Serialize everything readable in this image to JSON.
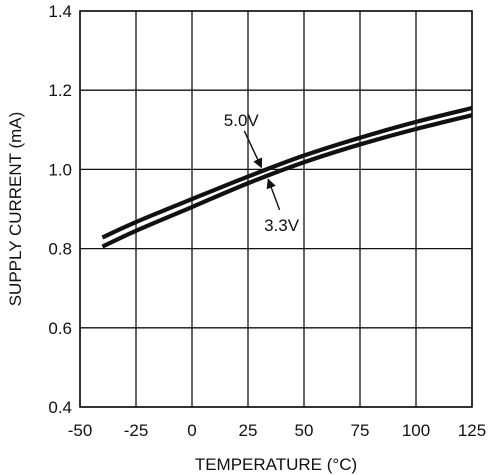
{
  "chart_data": {
    "type": "line",
    "xlabel": "TEMPERATURE (°C)",
    "ylabel": "SUPPLY CURRENT (mA)",
    "xlim": [
      -50,
      125
    ],
    "ylim": [
      0.4,
      1.4
    ],
    "x_ticks": [
      -50,
      -25,
      0,
      25,
      50,
      75,
      100,
      125
    ],
    "x_tick_labels": [
      "-50",
      "-25",
      "0",
      "25",
      "50",
      "75",
      "100",
      "125"
    ],
    "y_ticks": [
      0.4,
      0.6,
      0.8,
      1.0,
      1.2,
      1.4
    ],
    "y_tick_labels": [
      "0.4",
      "0.6",
      "0.8",
      "1.0",
      "1.2",
      "1.4"
    ],
    "grid": true,
    "series": [
      {
        "name": "5.0V",
        "x": [
          -40,
          -25,
          0,
          25,
          50,
          75,
          100,
          125
        ],
        "y": [
          0.828,
          0.867,
          0.925,
          0.982,
          1.035,
          1.08,
          1.12,
          1.155
        ]
      },
      {
        "name": "3.3V",
        "x": [
          -40,
          -25,
          0,
          25,
          50,
          75,
          100,
          125
        ],
        "y": [
          0.805,
          0.845,
          0.905,
          0.965,
          1.018,
          1.063,
          1.102,
          1.137
        ]
      }
    ],
    "annotations": [
      {
        "text": "5.0V",
        "series": "5.0V",
        "label_x": 22,
        "label_y": 1.125,
        "arrow_to_x": 31,
        "arrow_to_y": 1.005
      },
      {
        "text": "3.3V",
        "series": "3.3V",
        "label_x": 40,
        "label_y": 0.86,
        "arrow_to_x": 34,
        "arrow_to_y": 0.975
      }
    ],
    "colors": {
      "line": "#111111",
      "grid": "#111111",
      "background": "#ffffff"
    }
  }
}
